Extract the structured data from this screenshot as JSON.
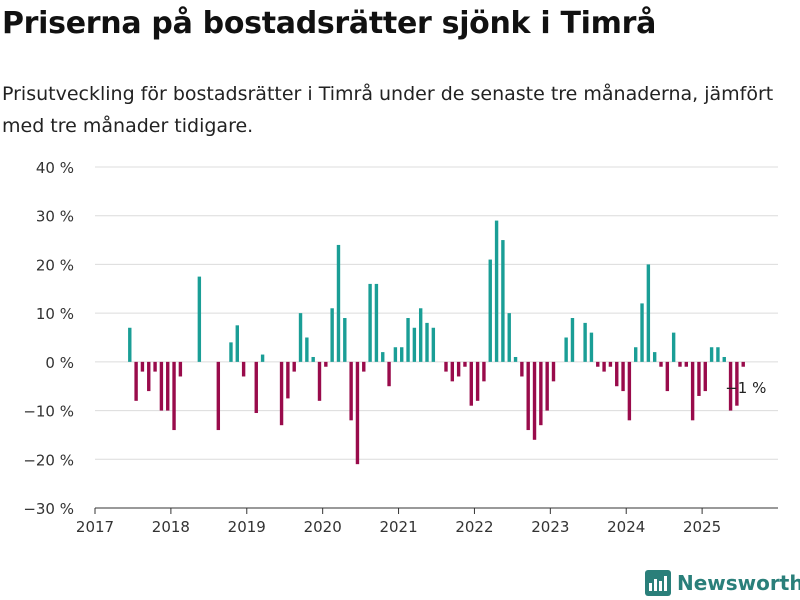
{
  "title": "Priserna på bostadsrätter sjönk i Timrå",
  "subtitle": "Prisutveckling för bostadsrätter i Timrå under de senaste tre månaderna, jämfört med tre månader tidigare.",
  "brand": "Newsworthy",
  "colors": {
    "positive": "#1a9e96",
    "negative": "#990b4b",
    "grid": "#dcdcdc",
    "axis": "#333333",
    "brand": "#2a7f7a"
  },
  "chart_data": {
    "type": "bar",
    "title": "Priserna på bostadsrätter sjönk i Timrå",
    "xlabel": "",
    "ylabel": "",
    "ylim": [
      -30,
      40
    ],
    "yticks": [
      40,
      30,
      20,
      10,
      0,
      -10,
      -20,
      -30
    ],
    "ytick_labels": [
      "40 %",
      "30 %",
      "20 %",
      "10 %",
      "0 %",
      "−10 %",
      "−20 %",
      "−30 %"
    ],
    "xlim": [
      "2017-01",
      "2025-12"
    ],
    "xticks": [
      "2017",
      "2018",
      "2019",
      "2020",
      "2021",
      "2022",
      "2023",
      "2024",
      "2025"
    ],
    "grid": true,
    "annotation": {
      "text": "−1 %",
      "month": "2025-07"
    },
    "points": [
      {
        "month": "2017-06",
        "value": 7
      },
      {
        "month": "2017-07",
        "value": -8
      },
      {
        "month": "2017-08",
        "value": -2
      },
      {
        "month": "2017-09",
        "value": -6
      },
      {
        "month": "2017-10",
        "value": -2
      },
      {
        "month": "2017-11",
        "value": -10
      },
      {
        "month": "2017-12",
        "value": -10
      },
      {
        "month": "2018-01",
        "value": -14
      },
      {
        "month": "2018-02",
        "value": -3
      },
      {
        "month": "2018-05",
        "value": 17.5
      },
      {
        "month": "2018-08",
        "value": -14
      },
      {
        "month": "2018-10",
        "value": 4
      },
      {
        "month": "2018-11",
        "value": 7.5
      },
      {
        "month": "2018-12",
        "value": -3
      },
      {
        "month": "2019-02",
        "value": -10.5
      },
      {
        "month": "2019-03",
        "value": 1.5
      },
      {
        "month": "2019-06",
        "value": -13
      },
      {
        "month": "2019-07",
        "value": -7.5
      },
      {
        "month": "2019-08",
        "value": -2
      },
      {
        "month": "2019-09",
        "value": 10
      },
      {
        "month": "2019-10",
        "value": 5
      },
      {
        "month": "2019-11",
        "value": 1
      },
      {
        "month": "2019-12",
        "value": -8
      },
      {
        "month": "2020-01",
        "value": -1
      },
      {
        "month": "2020-02",
        "value": 11
      },
      {
        "month": "2020-03",
        "value": 24
      },
      {
        "month": "2020-04",
        "value": 9
      },
      {
        "month": "2020-05",
        "value": -12
      },
      {
        "month": "2020-06",
        "value": -21
      },
      {
        "month": "2020-07",
        "value": -2
      },
      {
        "month": "2020-08",
        "value": 16
      },
      {
        "month": "2020-09",
        "value": 16
      },
      {
        "month": "2020-10",
        "value": 2
      },
      {
        "month": "2020-11",
        "value": -5
      },
      {
        "month": "2020-12",
        "value": 3
      },
      {
        "month": "2021-01",
        "value": 3
      },
      {
        "month": "2021-02",
        "value": 9
      },
      {
        "month": "2021-03",
        "value": 7
      },
      {
        "month": "2021-04",
        "value": 11
      },
      {
        "month": "2021-05",
        "value": 8
      },
      {
        "month": "2021-06",
        "value": 7
      },
      {
        "month": "2021-08",
        "value": -2
      },
      {
        "month": "2021-09",
        "value": -4
      },
      {
        "month": "2021-10",
        "value": -3
      },
      {
        "month": "2021-11",
        "value": -1
      },
      {
        "month": "2021-12",
        "value": -9
      },
      {
        "month": "2022-01",
        "value": -8
      },
      {
        "month": "2022-02",
        "value": -4
      },
      {
        "month": "2022-03",
        "value": 21
      },
      {
        "month": "2022-04",
        "value": 29
      },
      {
        "month": "2022-05",
        "value": 25
      },
      {
        "month": "2022-06",
        "value": 10
      },
      {
        "month": "2022-07",
        "value": 1
      },
      {
        "month": "2022-08",
        "value": -3
      },
      {
        "month": "2022-09",
        "value": -14
      },
      {
        "month": "2022-10",
        "value": -16
      },
      {
        "month": "2022-11",
        "value": -13
      },
      {
        "month": "2022-12",
        "value": -10
      },
      {
        "month": "2023-01",
        "value": -4
      },
      {
        "month": "2023-03",
        "value": 5
      },
      {
        "month": "2023-04",
        "value": 9
      },
      {
        "month": "2023-06",
        "value": 8
      },
      {
        "month": "2023-07",
        "value": 6
      },
      {
        "month": "2023-08",
        "value": -1
      },
      {
        "month": "2023-09",
        "value": -2
      },
      {
        "month": "2023-10",
        "value": -1
      },
      {
        "month": "2023-11",
        "value": -5
      },
      {
        "month": "2023-12",
        "value": -6
      },
      {
        "month": "2024-01",
        "value": -12
      },
      {
        "month": "2024-02",
        "value": 3
      },
      {
        "month": "2024-03",
        "value": 12
      },
      {
        "month": "2024-04",
        "value": 20
      },
      {
        "month": "2024-05",
        "value": 2
      },
      {
        "month": "2024-06",
        "value": -1
      },
      {
        "month": "2024-07",
        "value": -6
      },
      {
        "month": "2024-08",
        "value": 6
      },
      {
        "month": "2024-09",
        "value": -1
      },
      {
        "month": "2024-10",
        "value": -1
      },
      {
        "month": "2024-11",
        "value": -12
      },
      {
        "month": "2024-12",
        "value": -7
      },
      {
        "month": "2025-01",
        "value": -6
      },
      {
        "month": "2025-02",
        "value": 3
      },
      {
        "month": "2025-03",
        "value": 3
      },
      {
        "month": "2025-04",
        "value": 1
      },
      {
        "month": "2025-05",
        "value": -10
      },
      {
        "month": "2025-06",
        "value": -9
      },
      {
        "month": "2025-07",
        "value": -1
      }
    ]
  }
}
